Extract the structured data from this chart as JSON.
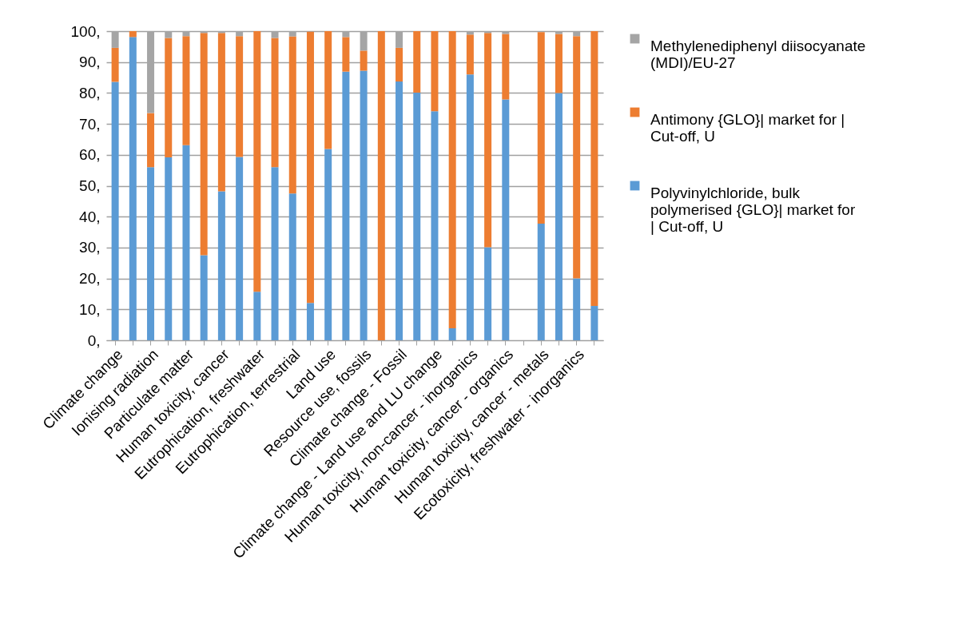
{
  "chart_data": {
    "type": "bar",
    "stacked": true,
    "legend": "right",
    "grid": "y",
    "categories": [
      "Climate change",
      null,
      "Ionising radiation",
      null,
      "Particulate matter",
      null,
      "Human toxicity, cancer",
      null,
      "Eutrophication, freshwater",
      null,
      "Eutrophication, terrestrial",
      null,
      "Land use",
      null,
      "Resource use, fossils",
      null,
      "Climate change - Fossil",
      null,
      "Climate change - Land use and LU change",
      null,
      "Human toxicity, non-cancer - inorganics",
      null,
      "Human toxicity, cancer - organics",
      null,
      "Human toxicity, cancer - metals",
      null,
      "Ecotoxicity, freshwater - inorganics",
      null
    ],
    "ylim": [
      0,
      100
    ],
    "yticks": [
      {
        "value": 0,
        "label": "0,"
      },
      {
        "value": 10,
        "label": "10,"
      },
      {
        "value": 20,
        "label": "20,"
      },
      {
        "value": 30,
        "label": "30,"
      },
      {
        "value": 40,
        "label": "40,"
      },
      {
        "value": 50,
        "label": "50,"
      },
      {
        "value": 60,
        "label": "60,"
      },
      {
        "value": 70,
        "label": "70,"
      },
      {
        "value": 80,
        "label": "80,"
      },
      {
        "value": 90,
        "label": "90,"
      },
      {
        "value": 100,
        "label": "100,"
      }
    ],
    "series": [
      {
        "name": "Polyvinylchloride, bulk polymerised {GLO}| market for | Cut-off, U",
        "color": "#5b9bd5",
        "values": [
          83.6,
          98.1,
          56.0,
          59.2,
          63.1,
          27.5,
          48.2,
          59.3,
          15.7,
          56.0,
          47.5,
          12.1,
          61.9,
          86.9,
          87.2,
          0,
          83.7,
          80.1,
          74.1,
          3.9,
          86.0,
          30.1,
          77.9,
          null,
          37.7,
          80.0,
          20.0,
          11.1
        ]
      },
      {
        "name": "Antimony {GLO}| market for | Cut-off, U",
        "color": "#ed7d31",
        "values": [
          11.0,
          1.9,
          17.5,
          38.6,
          35.3,
          71.9,
          51.2,
          39.1,
          84.3,
          41.8,
          50.8,
          87.7,
          38.1,
          11.2,
          6.5,
          100,
          10.9,
          19.9,
          25.9,
          96.1,
          12.9,
          69.3,
          21.2,
          null,
          62.0,
          19.1,
          78.4,
          88.9
        ]
      },
      {
        "name": "Methylenediphenyl diisocyanate (MDI)/EU-27",
        "color": "#a5a5a5",
        "values": [
          5.4,
          0,
          26.5,
          2.2,
          1.6,
          0.6,
          0.6,
          1.6,
          0,
          2.2,
          1.7,
          null,
          0,
          1.9,
          6.3,
          0,
          5.4,
          0,
          0,
          0,
          1.1,
          0.6,
          0.9,
          null,
          null,
          0.9,
          1.6,
          0
        ]
      }
    ]
  }
}
